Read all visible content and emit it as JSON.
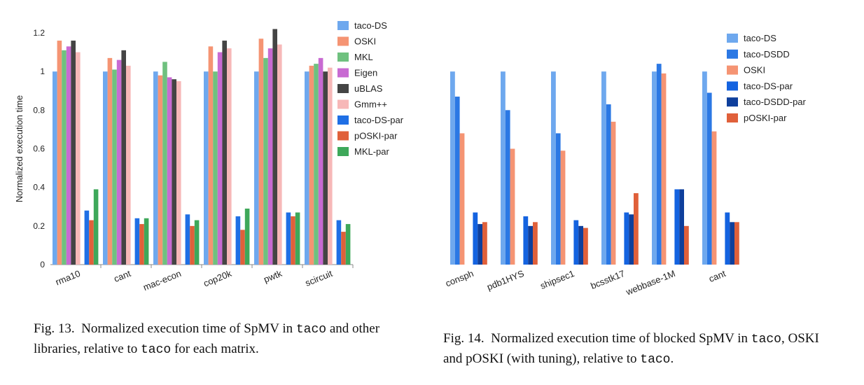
{
  "figures": [
    {
      "caption": {
        "label": "Fig. 13.",
        "segments": [
          {
            "t": "Normalized execution time of SpMV in ",
            "mono": false
          },
          {
            "t": "taco",
            "mono": true
          },
          {
            "t": " and other libraries, relative to ",
            "mono": false
          },
          {
            "t": "taco",
            "mono": true
          },
          {
            "t": " for each matrix.",
            "mono": false
          }
        ]
      }
    },
    {
      "caption": {
        "label": "Fig. 14.",
        "segments": [
          {
            "t": "Normalized execution time of blocked SpMV in ",
            "mono": false
          },
          {
            "t": "taco",
            "mono": true
          },
          {
            "t": ", OSKI and pOSKI (with tuning), relative to ",
            "mono": false
          },
          {
            "t": "taco",
            "mono": true
          },
          {
            "t": ".",
            "mono": false
          }
        ]
      }
    }
  ],
  "chart_data": [
    {
      "type": "bar",
      "title": "",
      "xlabel": "",
      "ylabel": "Normalized execution time",
      "ylim": [
        0,
        1.2
      ],
      "yticks": [
        "0",
        "0.2",
        "0.4",
        "0.6",
        "0.8",
        "1",
        "1.2"
      ],
      "grid": false,
      "legend_position": "right",
      "categories": [
        "rma10",
        "cant",
        "mac-econ",
        "cop20k",
        "pwtk",
        "scircuit"
      ],
      "series": [
        {
          "name": "taco-DS",
          "color": "#6ea8ee",
          "values": [
            1.0,
            1.0,
            1.0,
            1.0,
            1.0,
            1.0
          ]
        },
        {
          "name": "OSKI",
          "color": "#f59473",
          "values": [
            1.16,
            1.07,
            0.98,
            1.13,
            1.17,
            1.03
          ]
        },
        {
          "name": "MKL",
          "color": "#6fc17f",
          "values": [
            1.11,
            1.01,
            1.05,
            1.0,
            1.07,
            1.04
          ]
        },
        {
          "name": "Eigen",
          "color": "#c86ad2",
          "values": [
            1.13,
            1.06,
            0.97,
            1.1,
            1.12,
            1.07
          ]
        },
        {
          "name": "uBLAS",
          "color": "#444444",
          "values": [
            1.16,
            1.11,
            0.96,
            1.16,
            1.22,
            1.0
          ]
        },
        {
          "name": "Gmm++",
          "color": "#f7b8b8",
          "values": [
            1.1,
            1.03,
            0.95,
            1.12,
            1.14,
            1.02
          ]
        },
        {
          "name": "taco-DS-par",
          "color": "#1f6fe5",
          "values": [
            0.28,
            0.24,
            0.26,
            0.25,
            0.27,
            0.23
          ]
        },
        {
          "name": "pOSKI-par",
          "color": "#e0603a",
          "values": [
            0.23,
            0.21,
            0.2,
            0.18,
            0.25,
            0.17
          ]
        },
        {
          "name": "MKL-par",
          "color": "#3ea85a",
          "values": [
            0.39,
            0.24,
            0.23,
            0.29,
            0.27,
            0.21
          ]
        }
      ]
    },
    {
      "type": "bar",
      "title": "",
      "xlabel": "",
      "ylabel": "",
      "ylim": [
        0,
        1.2
      ],
      "yticks": [],
      "grid": false,
      "legend_position": "right",
      "categories": [
        "consph",
        "pdb1HYS",
        "shipsec1",
        "bcsstk17",
        "webbase-1M",
        "cant"
      ],
      "series": [
        {
          "name": "taco-DS",
          "color": "#6ea8ee",
          "values": [
            1.0,
            1.0,
            1.0,
            1.0,
            1.0,
            1.0
          ]
        },
        {
          "name": "taco-DSDD",
          "color": "#2b78e4",
          "values": [
            0.87,
            0.8,
            0.68,
            0.83,
            1.04,
            0.89
          ]
        },
        {
          "name": "OSKI",
          "color": "#f59473",
          "values": [
            0.68,
            0.6,
            0.59,
            0.74,
            0.99,
            0.69
          ]
        },
        {
          "name": "taco-DS-par",
          "color": "#1463e0",
          "values": [
            0.27,
            0.25,
            0.23,
            0.27,
            0.39,
            0.27
          ]
        },
        {
          "name": "taco-DSDD-par",
          "color": "#0e3f9c",
          "values": [
            0.21,
            0.2,
            0.2,
            0.26,
            0.39,
            0.22
          ]
        },
        {
          "name": "pOSKI-par",
          "color": "#e0603a",
          "values": [
            0.22,
            0.22,
            0.19,
            0.37,
            0.2,
            0.22
          ]
        }
      ]
    }
  ]
}
